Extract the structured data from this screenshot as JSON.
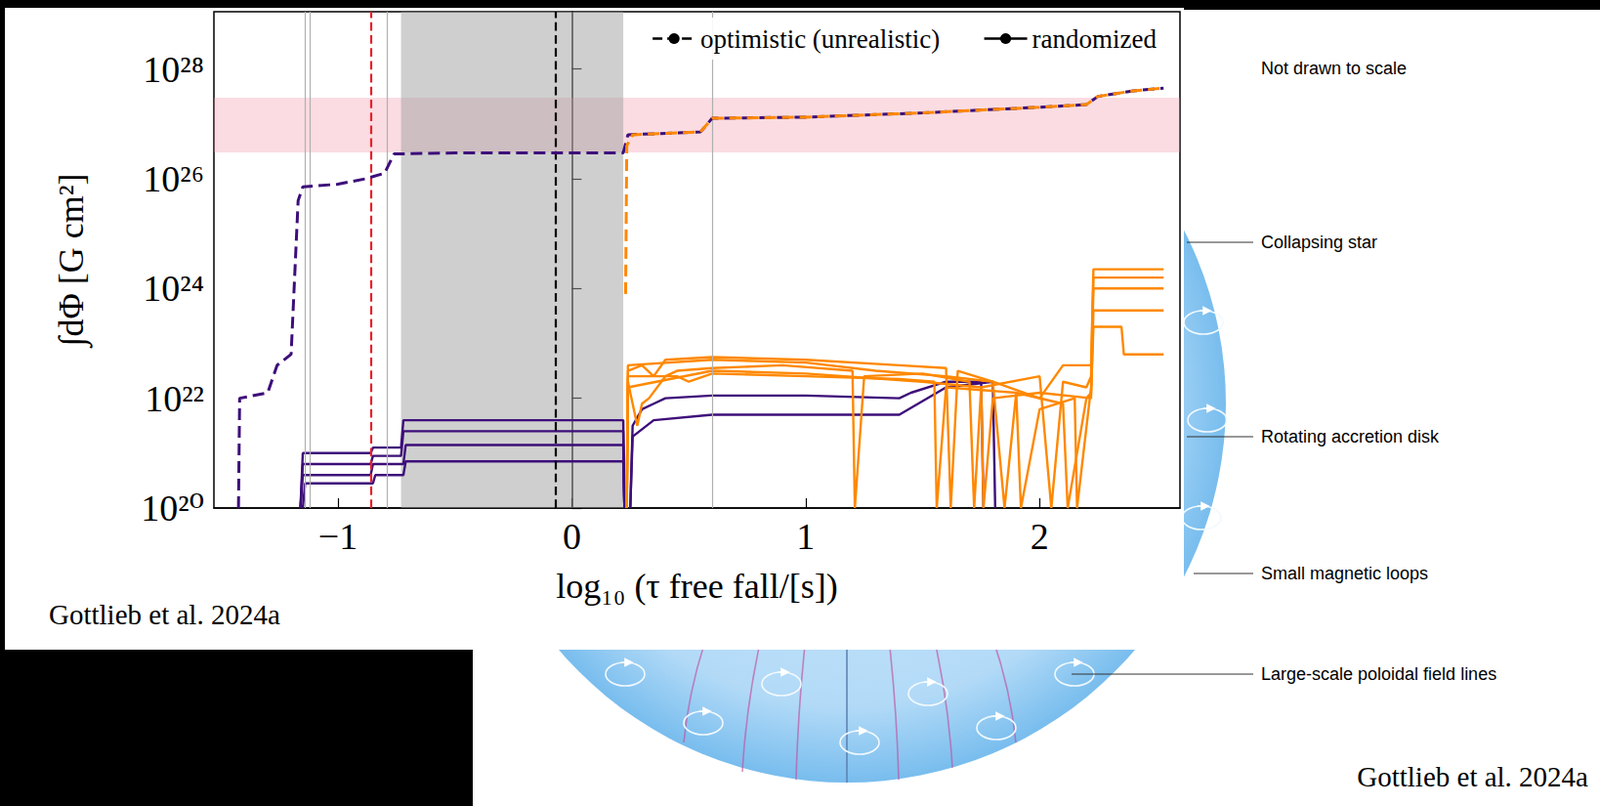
{
  "chart_data": {
    "type": "line",
    "x_label": "log₁₀ (τ free fall/[s])",
    "y_label": "∫dΦ [G cm²]",
    "annotation": "Gottlieb et al. 2024a",
    "xlim": [
      -1.53,
      2.6
    ],
    "ylim": [
      1e+20,
      1.1e+29
    ],
    "xticks": [
      {
        "value": -1,
        "label": "−1"
      },
      0,
      1,
      2
    ],
    "yticks": [
      {
        "value": 1e+20,
        "label": "10²⁰"
      },
      {
        "value": 1e+22,
        "label": "10²²"
      },
      {
        "value": 1e+24,
        "label": "10²⁴"
      },
      {
        "value": 1e+26,
        "label": "10²⁶"
      },
      {
        "value": 1e+28,
        "label": "10²⁸"
      }
    ],
    "log": "y",
    "grid": false,
    "legend": "upper right",
    "reference_lines": [
      {
        "x": -1.14,
        "color": "#b0b0b0",
        "line_style": "solid"
      },
      {
        "x": -1.12,
        "color": "#b0b0b0",
        "line_style": "solid"
      },
      {
        "x": -0.79,
        "color": "#b0b0b0",
        "line_style": "solid"
      },
      {
        "x": 0.6,
        "color": "#b0b0b0",
        "line_style": "solid"
      },
      {
        "x": -0.86,
        "color": "#e8202a",
        "line_style": "dashed"
      },
      {
        "x": -0.07,
        "color": "#000000",
        "line_style": "dashed"
      }
    ],
    "shaded_x": {
      "range": [
        -0.73,
        0.22
      ],
      "color": "#a0a0a0"
    },
    "band_y": {
      "range": [
        3e+26,
        3e+27
      ],
      "color": "#f08ca0"
    },
    "series": [
      {
        "name": "optimistic (unrealistic)",
        "color": "#3d0e7a",
        "line_style": "dashed",
        "x": [
          -1.425,
          -1.42,
          -1.3,
          -1.26,
          -1.2,
          -1.17,
          -1.15,
          -1.0,
          -0.88,
          -0.8,
          -0.76,
          -0.5,
          0.22,
          0.24,
          0.55,
          0.6,
          1.0,
          1.5,
          2.0,
          2.2,
          2.25,
          2.4,
          2.53
        ],
        "values": [
          1e+20,
          1e+22,
          1.26e+22,
          3.98e+22,
          6.31e+22,
          3.98e+25,
          7.08e+25,
          7.94e+25,
          1e+26,
          1.26e+26,
          2.82e+26,
          2.95e+26,
          2.95e+26,
          6.31e+26,
          7.08e+26,
          1.26e+27,
          1.32e+27,
          1.58e+27,
          2e+27,
          2.24e+27,
          3.16e+27,
          3.98e+27,
          4.47e+27
        ]
      },
      {
        "name": "optimistic (unrealistic)",
        "color": "#ff8800",
        "line_style": "dashed",
        "x": [
          0.23,
          0.235,
          0.26,
          0.55,
          0.6,
          1.0,
          1.5,
          2.0,
          2.2,
          2.25,
          2.4,
          2.53
        ],
        "values": [
          7.94e+23,
          3.98e+26,
          6.31e+26,
          7.08e+26,
          1.26e+27,
          1.32e+27,
          1.58e+27,
          2e+27,
          2.24e+27,
          3.16e+27,
          3.98e+27,
          4.47e+27
        ]
      },
      {
        "name": "randomized",
        "color": "#3d0e7a",
        "line_style": "solid",
        "x": [
          -1.16,
          -1.15,
          -0.86,
          -0.85,
          -0.73,
          -0.72,
          0.22,
          0.225
        ],
        "values": [
          1e+20,
          1e+21,
          1e+21,
          1.26e+21,
          1.26e+21,
          3.98e+21,
          3.98e+21,
          1e+20
        ]
      },
      {
        "name": "randomized",
        "color": "#3d0e7a",
        "line_style": "solid",
        "x": [
          -1.16,
          -1.15,
          -0.86,
          -0.85,
          -0.73,
          -0.72,
          0.22,
          0.225
        ],
        "values": [
          1e+20,
          6.31e+20,
          6.31e+20,
          8.91e+20,
          8.91e+20,
          2.51e+21,
          2.51e+21,
          1e+20
        ]
      },
      {
        "name": "randomized",
        "color": "#3d0e7a",
        "line_style": "solid",
        "x": [
          -1.16,
          -1.15,
          -0.86,
          -0.85,
          -0.72,
          -0.71,
          0.22,
          0.225
        ],
        "values": [
          1e+20,
          3.98e+20,
          3.98e+20,
          6.31e+20,
          6.31e+20,
          1.41e+21,
          1.41e+21,
          1e+20
        ]
      },
      {
        "name": "randomized",
        "color": "#3d0e7a",
        "line_style": "solid",
        "x": [
          -1.15,
          -1.14,
          -0.85,
          -0.84,
          -0.72,
          -0.71,
          0.22,
          0.225
        ],
        "values": [
          1e+20,
          2.82e+20,
          2.82e+20,
          3.98e+20,
          3.98e+20,
          7.08e+20,
          7.08e+20,
          1e+20
        ]
      },
      {
        "name": "randomized",
        "color": "#3d0e7a",
        "line_style": "solid",
        "x": [
          0.25,
          0.26,
          0.3,
          0.35,
          0.4,
          0.6,
          1.0,
          1.4,
          1.45,
          1.6,
          1.75,
          1.76
        ],
        "values": [
          1e+20,
          3.16e+21,
          6.31e+21,
          7.94e+21,
          1e+22,
          1.12e+22,
          1.12e+22,
          1e+22,
          1.26e+22,
          2e+22,
          2e+22,
          1e+20
        ]
      },
      {
        "name": "randomized",
        "color": "#3d0e7a",
        "line_style": "solid",
        "x": [
          0.25,
          0.26,
          0.35,
          0.6,
          1.0,
          1.4,
          1.6,
          1.8,
          1.81
        ],
        "values": [
          1e+20,
          2e+21,
          3.98e+21,
          5.01e+21,
          5.01e+21,
          5.01e+21,
          1.58e+22,
          2e+22,
          1e+20
        ]
      },
      {
        "name": "randomized",
        "color": "#ff8800",
        "line_style": "solid",
        "x": [
          0.235,
          0.24,
          0.3,
          0.35,
          0.4,
          0.6,
          1.0,
          1.4,
          1.6,
          1.62,
          1.65,
          1.8,
          2.0,
          2.1,
          2.22,
          2.23,
          2.53
        ],
        "values": [
          1e+20,
          3.16e+22,
          3.98e+22,
          2.51e+22,
          5.01e+22,
          5.62e+22,
          5.01e+22,
          3.98e+22,
          3.55e+22,
          1e+20,
          3.16e+22,
          2e+22,
          1e+22,
          3.98e+22,
          3.98e+22,
          2.24e+24,
          2.24e+24
        ]
      },
      {
        "name": "randomized",
        "color": "#ff8800",
        "line_style": "solid",
        "x": [
          0.235,
          0.24,
          0.28,
          0.3,
          0.33,
          0.4,
          0.45,
          0.6,
          0.9,
          1.2,
          1.21,
          1.25,
          1.5,
          1.7,
          1.72,
          1.75,
          2.0,
          2.05,
          2.1,
          2.2,
          2.22,
          2.23,
          2.4,
          2.53
        ],
        "values": [
          1e+20,
          2e+22,
          3.16e+21,
          7.94e+21,
          1e+22,
          2.51e+22,
          3.16e+22,
          3.55e+22,
          3.98e+22,
          3.16e+22,
          1e+20,
          2.51e+22,
          2.82e+22,
          2e+22,
          1e+20,
          1.58e+22,
          2.51e+22,
          1e+20,
          2e+22,
          1.58e+22,
          2.51e+22,
          1.58e+24,
          1.58e+24,
          1.58e+24
        ]
      },
      {
        "name": "randomized",
        "color": "#ff8800",
        "line_style": "solid",
        "x": [
          0.235,
          0.24,
          0.45,
          0.5,
          0.6,
          1.0,
          1.4,
          1.55,
          1.56,
          1.6,
          1.9,
          1.92,
          2.0,
          2.15,
          2.16,
          2.22,
          2.23,
          2.53
        ],
        "values": [
          1e+20,
          2.51e+22,
          2.51e+22,
          2e+22,
          2.82e+22,
          2.51e+22,
          2.24e+22,
          2e+22,
          1e+20,
          1.58e+22,
          1.26e+22,
          1e+20,
          6.31e+21,
          1e+22,
          1e+20,
          1.58e+22,
          1e+24,
          1e+24
        ]
      },
      {
        "name": "randomized",
        "color": "#ff8800",
        "line_style": "solid",
        "x": [
          0.235,
          0.24,
          0.6,
          1.0,
          1.5,
          1.75,
          1.76,
          1.8,
          2.0,
          2.22,
          2.23,
          2.53
        ],
        "values": [
          1e+20,
          1.58e+22,
          3.16e+22,
          2.82e+22,
          2e+22,
          1.58e+22,
          1e+20,
          1e+22,
          1.26e+22,
          1e+22,
          3.98e+23,
          3.98e+23
        ]
      },
      {
        "name": "randomized",
        "color": "#ff8800",
        "line_style": "solid",
        "x": [
          0.235,
          0.24,
          0.6,
          1.0,
          1.3,
          1.6,
          1.8,
          1.85,
          1.9,
          2.1,
          2.12,
          2.2,
          2.22,
          2.23,
          2.35,
          2.36,
          2.53
        ],
        "values": [
          1e+20,
          3.98e+22,
          5.01e+22,
          4.47e+22,
          3.16e+22,
          2.51e+22,
          2e+22,
          1e+20,
          1.26e+22,
          7.94e+21,
          1e+20,
          1e+22,
          1.26e+22,
          2e+23,
          2e+23,
          6.31e+22,
          6.31e+22
        ]
      }
    ]
  },
  "diagram": {
    "note": "Not drawn to scale",
    "labels": [
      "Collapsing star",
      "Rotating accretion disk",
      "Small magnetic loops",
      "Large-scale poloidal field lines"
    ],
    "credit": "Gottlieb et al. 2024a"
  }
}
